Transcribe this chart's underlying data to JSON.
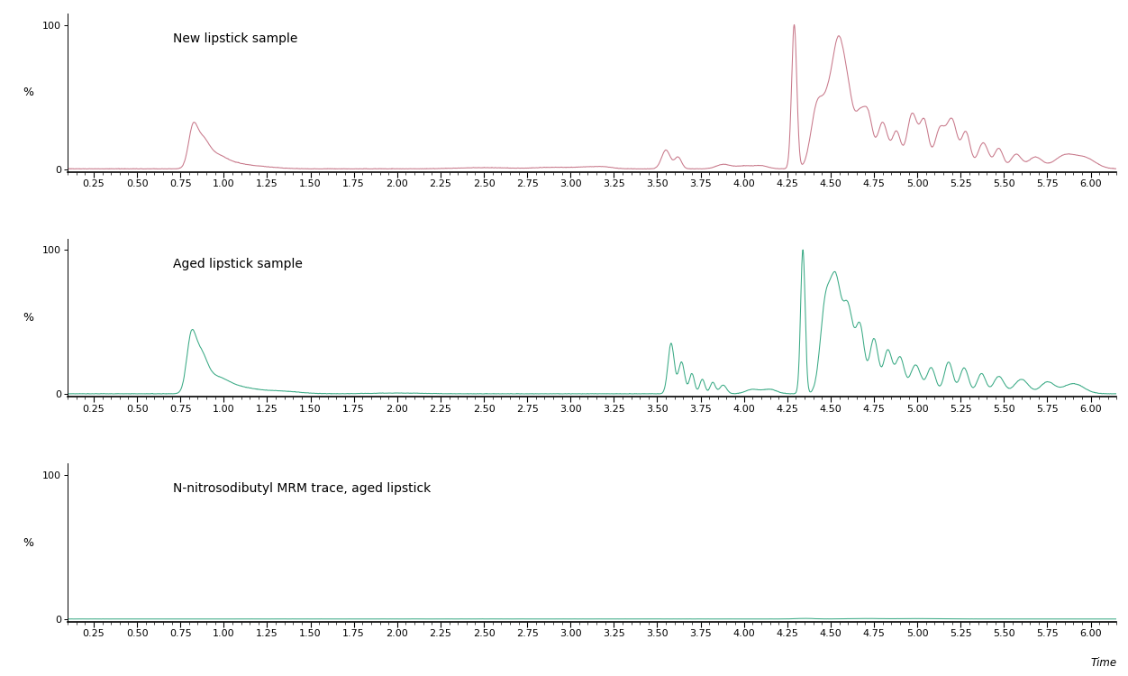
{
  "panel1_label": "New lipstick sample",
  "panel2_label": "Aged lipstick sample",
  "panel3_label": "N-nitrosodibutyl MRM trace, aged lipstick",
  "xlabel": "Time",
  "ylabel": "%",
  "color1": "#c8788a",
  "color2": "#3aaa85",
  "color3": "#3aaa85",
  "xlim": [
    0.1,
    6.15
  ],
  "ylim": [
    -2,
    108
  ],
  "xticks": [
    0.25,
    0.5,
    0.75,
    1.0,
    1.25,
    1.5,
    1.75,
    2.0,
    2.25,
    2.5,
    2.75,
    3.0,
    3.25,
    3.5,
    3.75,
    4.0,
    4.25,
    4.5,
    4.75,
    5.0,
    5.25,
    5.5,
    5.75,
    6.0
  ],
  "background_color": "#ffffff",
  "label_fontsize": 10,
  "tick_fontsize": 8
}
